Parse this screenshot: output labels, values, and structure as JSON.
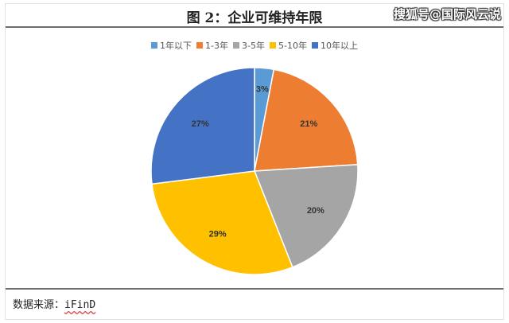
{
  "title": "图 2：企业可维持年限",
  "watermark": "搜狐号@国际风云说",
  "source_label": "数据来源：",
  "source_value": "iFinD",
  "chart_data": {
    "type": "pie",
    "title": "图 2：企业可维持年限",
    "legend_position": "top",
    "categories": [
      "1年以下",
      "1-3年",
      "3-5年",
      "5-10年",
      "10年以上"
    ],
    "values": [
      3,
      21,
      20,
      29,
      27
    ],
    "labels": [
      "3%",
      "21%",
      "20%",
      "29%",
      "27%"
    ],
    "colors": [
      "#5b9bd5",
      "#ed7d31",
      "#a5a5a5",
      "#ffc000",
      "#4472c4"
    ],
    "start_angle": "12 o'clock",
    "direction": "clockwise"
  }
}
